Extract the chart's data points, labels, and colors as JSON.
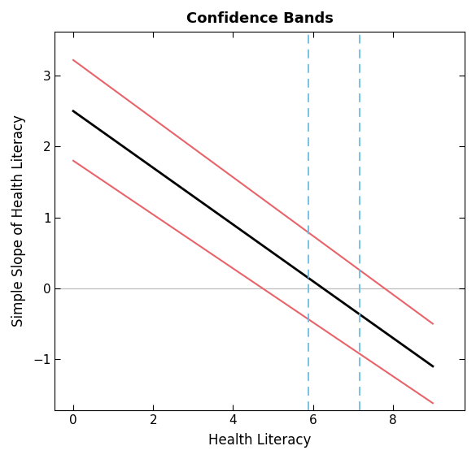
{
  "title": "Confidence Bands",
  "xlabel": "Health Literacy",
  "ylabel": "Simple Slope of Health Literacy",
  "xlim": [
    -0.46,
    9.8
  ],
  "ylim": [
    -1.72,
    3.62
  ],
  "x_ticks": [
    0,
    2,
    4,
    6,
    8
  ],
  "y_ticks": [
    -1,
    0,
    1,
    2,
    3
  ],
  "x_start": 0.0,
  "x_end": 9.0,
  "black_line_y0": 2.5,
  "black_line_y1": -1.1,
  "upper_band_y0": 3.22,
  "upper_band_y1": -0.5,
  "lower_band_y0": 1.8,
  "lower_band_y1": -1.62,
  "vline1_x": 5.88,
  "vline2_x": 7.18,
  "hline_y": 0.0,
  "black_color": "#000000",
  "band_color": "#E8646A",
  "vline_color": "#6BBDE3",
  "hline_color": "#BEBEBE",
  "title_fontsize": 13,
  "axis_label_fontsize": 12,
  "tick_fontsize": 11,
  "fig_width": 5.85,
  "fig_height": 5.65,
  "fig_dpi": 100
}
